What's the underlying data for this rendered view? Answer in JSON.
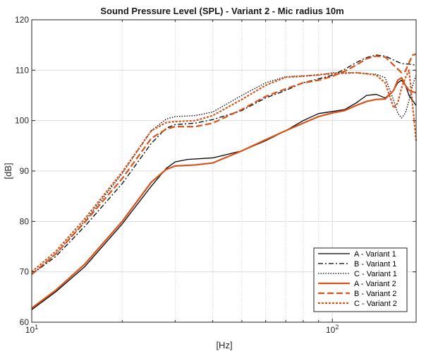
{
  "chart_data": {
    "type": "line",
    "title": "Sound Pressure Level (SPL) - Variant 2 - Mic radius 10m",
    "xlabel": "[Hz]",
    "ylabel": "[dB]",
    "xscale": "log",
    "xlim": [
      10,
      190
    ],
    "ylim": [
      60,
      120
    ],
    "x_tick_labels": [
      {
        "value": 10,
        "base": "10",
        "exp": "1"
      },
      {
        "value": 100,
        "base": "10",
        "exp": "2"
      }
    ],
    "y_ticks": [
      60,
      70,
      80,
      90,
      100,
      110,
      120
    ],
    "grid": true,
    "legend_position": "bottom-right",
    "colors": {
      "black": "#000000",
      "orange": "#d95319"
    },
    "series": [
      {
        "name": "A - Variant 1",
        "color": "#000000",
        "style": "solid",
        "points": [
          [
            10,
            62.5
          ],
          [
            12,
            66
          ],
          [
            15,
            71
          ],
          [
            20,
            79.5
          ],
          [
            25,
            87
          ],
          [
            28,
            90.5
          ],
          [
            30,
            91.8
          ],
          [
            33,
            92.3
          ],
          [
            40,
            92.6
          ],
          [
            50,
            94
          ],
          [
            60,
            96
          ],
          [
            70,
            98
          ],
          [
            80,
            100
          ],
          [
            90,
            101.4
          ],
          [
            100,
            101.8
          ],
          [
            110,
            102.2
          ],
          [
            120,
            103.5
          ],
          [
            130,
            105
          ],
          [
            140,
            105.2
          ],
          [
            150,
            104.5
          ],
          [
            160,
            106
          ],
          [
            165,
            107.5
          ],
          [
            170,
            108
          ],
          [
            175,
            107
          ],
          [
            180,
            105
          ],
          [
            190,
            103
          ]
        ]
      },
      {
        "name": "B - Variant 1",
        "color": "#000000",
        "style": "dashdot",
        "points": [
          [
            10,
            69.5
          ],
          [
            12,
            73
          ],
          [
            15,
            79
          ],
          [
            20,
            87.5
          ],
          [
            25,
            95.5
          ],
          [
            28,
            98.5
          ],
          [
            30,
            99.2
          ],
          [
            35,
            99.5
          ],
          [
            40,
            100.2
          ],
          [
            50,
            102
          ],
          [
            60,
            104.5
          ],
          [
            70,
            106
          ],
          [
            80,
            107.5
          ],
          [
            90,
            108.3
          ],
          [
            100,
            109
          ],
          [
            110,
            110.2
          ],
          [
            120,
            111.5
          ],
          [
            130,
            112.5
          ],
          [
            140,
            113
          ],
          [
            150,
            112.8
          ],
          [
            160,
            112
          ],
          [
            170,
            111.3
          ],
          [
            180,
            111.2
          ],
          [
            190,
            111
          ]
        ]
      },
      {
        "name": "C - Variant 1",
        "color": "#000000",
        "style": "dotted",
        "points": [
          [
            10,
            69.5
          ],
          [
            12,
            73.5
          ],
          [
            15,
            80
          ],
          [
            20,
            89.5
          ],
          [
            25,
            98
          ],
          [
            28,
            100.3
          ],
          [
            30,
            100.8
          ],
          [
            35,
            101
          ],
          [
            40,
            101.7
          ],
          [
            50,
            105
          ],
          [
            60,
            107.5
          ],
          [
            70,
            108.7
          ],
          [
            80,
            108.9
          ],
          [
            90,
            109
          ],
          [
            100,
            109.5
          ],
          [
            110,
            109.5
          ],
          [
            120,
            109.5
          ],
          [
            130,
            109.3
          ],
          [
            140,
            109.2
          ],
          [
            150,
            108.5
          ],
          [
            160,
            104
          ],
          [
            165,
            101.5
          ],
          [
            170,
            100.5
          ],
          [
            175,
            101.5
          ],
          [
            180,
            104
          ],
          [
            185,
            107
          ],
          [
            190,
            109
          ]
        ]
      },
      {
        "name": "A - Variant 2",
        "color": "#d95319",
        "style": "solid",
        "points": [
          [
            10,
            62.8
          ],
          [
            12,
            66.3
          ],
          [
            15,
            71.5
          ],
          [
            20,
            80
          ],
          [
            25,
            87.8
          ],
          [
            28,
            90.3
          ],
          [
            30,
            91
          ],
          [
            35,
            91.2
          ],
          [
            40,
            91.6
          ],
          [
            50,
            94
          ],
          [
            60,
            96.2
          ],
          [
            70,
            98
          ],
          [
            80,
            99.5
          ],
          [
            90,
            100.8
          ],
          [
            100,
            101.5
          ],
          [
            110,
            102
          ],
          [
            120,
            103
          ],
          [
            130,
            103.8
          ],
          [
            140,
            104.2
          ],
          [
            150,
            104.3
          ],
          [
            160,
            106
          ],
          [
            165,
            108
          ],
          [
            170,
            108.5
          ],
          [
            175,
            107
          ],
          [
            180,
            106
          ],
          [
            190,
            105.5
          ]
        ]
      },
      {
        "name": "B - Variant 2",
        "color": "#d95319",
        "style": "dashed",
        "points": [
          [
            10,
            69.5
          ],
          [
            12,
            73.5
          ],
          [
            15,
            79.8
          ],
          [
            20,
            88.5
          ],
          [
            25,
            96.5
          ],
          [
            28,
            98.3
          ],
          [
            30,
            98.8
          ],
          [
            35,
            98.8
          ],
          [
            40,
            99.5
          ],
          [
            50,
            102.2
          ],
          [
            60,
            104.8
          ],
          [
            70,
            106.3
          ],
          [
            80,
            107.5
          ],
          [
            90,
            108
          ],
          [
            100,
            108.8
          ],
          [
            110,
            109.8
          ],
          [
            120,
            111
          ],
          [
            130,
            112.3
          ],
          [
            140,
            112.8
          ],
          [
            150,
            112.6
          ],
          [
            160,
            111
          ],
          [
            170,
            109.5
          ],
          [
            175,
            109.8
          ],
          [
            180,
            111.5
          ],
          [
            185,
            113
          ],
          [
            190,
            113.2
          ]
        ]
      },
      {
        "name": "C - Variant 2",
        "color": "#d95319",
        "style": "shortdash",
        "points": [
          [
            10,
            70
          ],
          [
            12,
            74
          ],
          [
            15,
            80.5
          ],
          [
            20,
            89.8
          ],
          [
            25,
            98
          ],
          [
            28,
            99.6
          ],
          [
            30,
            99.8
          ],
          [
            35,
            100
          ],
          [
            40,
            101
          ],
          [
            50,
            104.2
          ],
          [
            60,
            107
          ],
          [
            70,
            108.6
          ],
          [
            80,
            108.8
          ],
          [
            90,
            109.1
          ],
          [
            100,
            109.3
          ],
          [
            110,
            109.4
          ],
          [
            120,
            109.5
          ],
          [
            130,
            109.3
          ],
          [
            140,
            109
          ],
          [
            150,
            107.5
          ],
          [
            160,
            102.5
          ],
          [
            165,
            103.5
          ],
          [
            170,
            106.5
          ],
          [
            175,
            108.5
          ],
          [
            180,
            110
          ],
          [
            185,
            103
          ],
          [
            190,
            96
          ]
        ]
      }
    ]
  }
}
